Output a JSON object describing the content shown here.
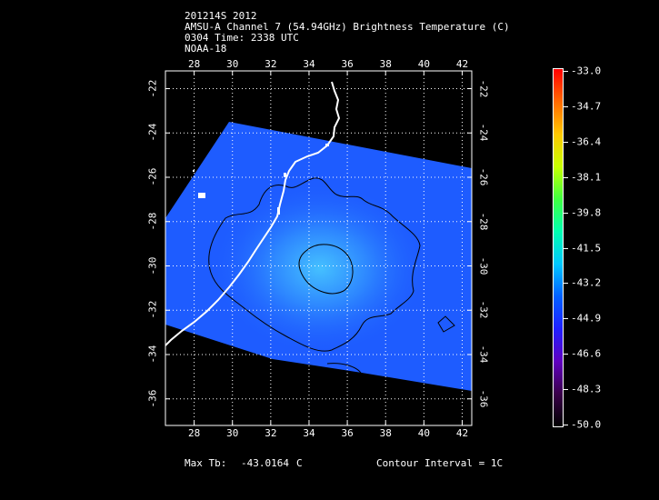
{
  "header": {
    "line1": "201214S 2012",
    "line2": "AMSU-A Channel 7 (54.94GHz) Brightness Temperature (C)",
    "line3": "0304 Time: 2338 UTC",
    "line4": "NOAA-18"
  },
  "map": {
    "lon_ticks": [
      "28",
      "30",
      "32",
      "34",
      "36",
      "38",
      "40",
      "42"
    ],
    "lat_ticks": [
      "-22",
      "-24",
      "-26",
      "-28",
      "-30",
      "-32",
      "-34",
      "-36"
    ],
    "lon_range": [
      26.5,
      42.5
    ],
    "lat_range": [
      -21.2,
      -37.2
    ],
    "grid": true
  },
  "colorbar": {
    "labels": [
      "-33.0",
      "-34.7",
      "-36.4",
      "-38.1",
      "-39.8",
      "-41.5",
      "-43.2",
      "-44.9",
      "-46.6",
      "-48.3",
      "-50.0"
    ],
    "colors": [
      "#ff0000",
      "#ff6a00",
      "#ffc800",
      "#c8ff00",
      "#40ff40",
      "#00ffb0",
      "#00c8ff",
      "#0060ff",
      "#2020ff",
      "#6000c0",
      "#3a004a",
      "#000000"
    ]
  },
  "footer": {
    "max_label": "Max Tb:",
    "max_value": "-43.0164",
    "max_unit": "C",
    "contour": "Contour Interval = 1C"
  },
  "colors": {
    "swath": "#1e5cff",
    "warm_core": "#3ab0ff",
    "coast": "#ffffff",
    "contour": "#000000"
  }
}
